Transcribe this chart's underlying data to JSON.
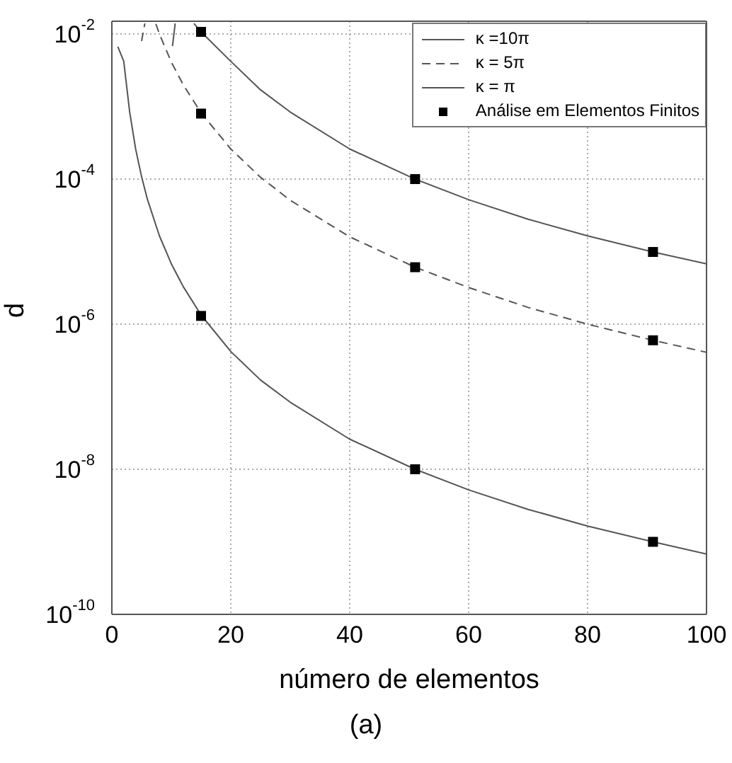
{
  "chart_data": {
    "type": "line",
    "xlabel": "número de elementos",
    "ylabel": "d",
    "log": "y",
    "grid": true,
    "legend": "top right",
    "xlim": [
      0,
      100
    ],
    "xticks": [
      0,
      20,
      40,
      60,
      80,
      100
    ],
    "ylim": [
      1e-10,
      0.015
    ],
    "yticks": [
      {
        "value": 1e-10,
        "label": "10$^{-10}$"
      },
      {
        "value": 1e-08,
        "label": "10$^{-8}$"
      },
      {
        "value": 1e-06,
        "label": "10$^{-6}$"
      },
      {
        "value": 0.0001,
        "label": "10$^{-4}$"
      },
      {
        "value": 0.01,
        "label": "10$^{-2}$"
      }
    ],
    "series": [
      {
        "name": "κ =10π",
        "color": "#555555",
        "line_style": "solid",
        "marker": "none",
        "x": [
          10.2,
          10.65,
          12,
          13.8,
          15,
          20,
          25,
          30,
          40,
          51,
          60,
          70,
          80,
          91,
          100
        ],
        "values": [
          0.0068,
          0.014,
          null,
          0.014,
          0.0107,
          0.0042,
          0.0017,
          0.00084,
          0.00026,
          0.0001,
          5.2e-05,
          2.8e-05,
          1.65e-05,
          9.9e-06,
          6.8e-06
        ]
      },
      {
        "name": "κ = 5π",
        "color": "#555555",
        "line_style": "dashed",
        "marker": "none",
        "x": [
          5.0,
          5.55,
          6.5,
          7.4,
          8,
          10,
          12,
          15,
          20,
          25,
          30,
          40,
          51,
          60,
          70,
          80,
          91,
          100
        ],
        "values": [
          0.008,
          0.014,
          null,
          0.0138,
          0.01,
          0.0041,
          0.002,
          0.00082,
          0.00026,
          0.000106,
          5.1e-05,
          1.6e-05,
          6.1e-06,
          3.2e-06,
          1.7e-06,
          1e-06,
          6e-07,
          4.1e-07
        ]
      },
      {
        "name": "κ = π",
        "color": "#555555",
        "line_style": "solid",
        "marker": "none",
        "x": [
          1,
          2,
          3,
          4,
          5,
          6,
          8,
          10,
          12,
          15,
          20,
          25,
          30,
          40,
          51,
          60,
          70,
          80,
          91,
          100
        ],
        "values": [
          0.0067,
          0.0042,
          0.00084,
          0.00026,
          0.000108,
          5.2e-05,
          1.65e-05,
          6.8e-06,
          3.3e-06,
          1.34e-06,
          4.2e-07,
          1.7e-07,
          8.4e-08,
          2.6e-08,
          1e-08,
          5.2e-09,
          2.8e-09,
          1.65e-09,
          1e-09,
          6.8e-10
        ]
      },
      {
        "name": "Análise em Elementos Finitos",
        "type": "scatter",
        "color": "#000000",
        "marker": "square",
        "x": [
          15,
          51,
          91,
          15,
          51,
          91,
          15,
          51,
          91
        ],
        "values": [
          0.0107,
          0.0001,
          9.9e-06,
          0.0008,
          6.1e-06,
          6e-07,
          1.3e-06,
          1e-08,
          1e-09
        ]
      }
    ],
    "annotations": [
      "(a)"
    ]
  }
}
